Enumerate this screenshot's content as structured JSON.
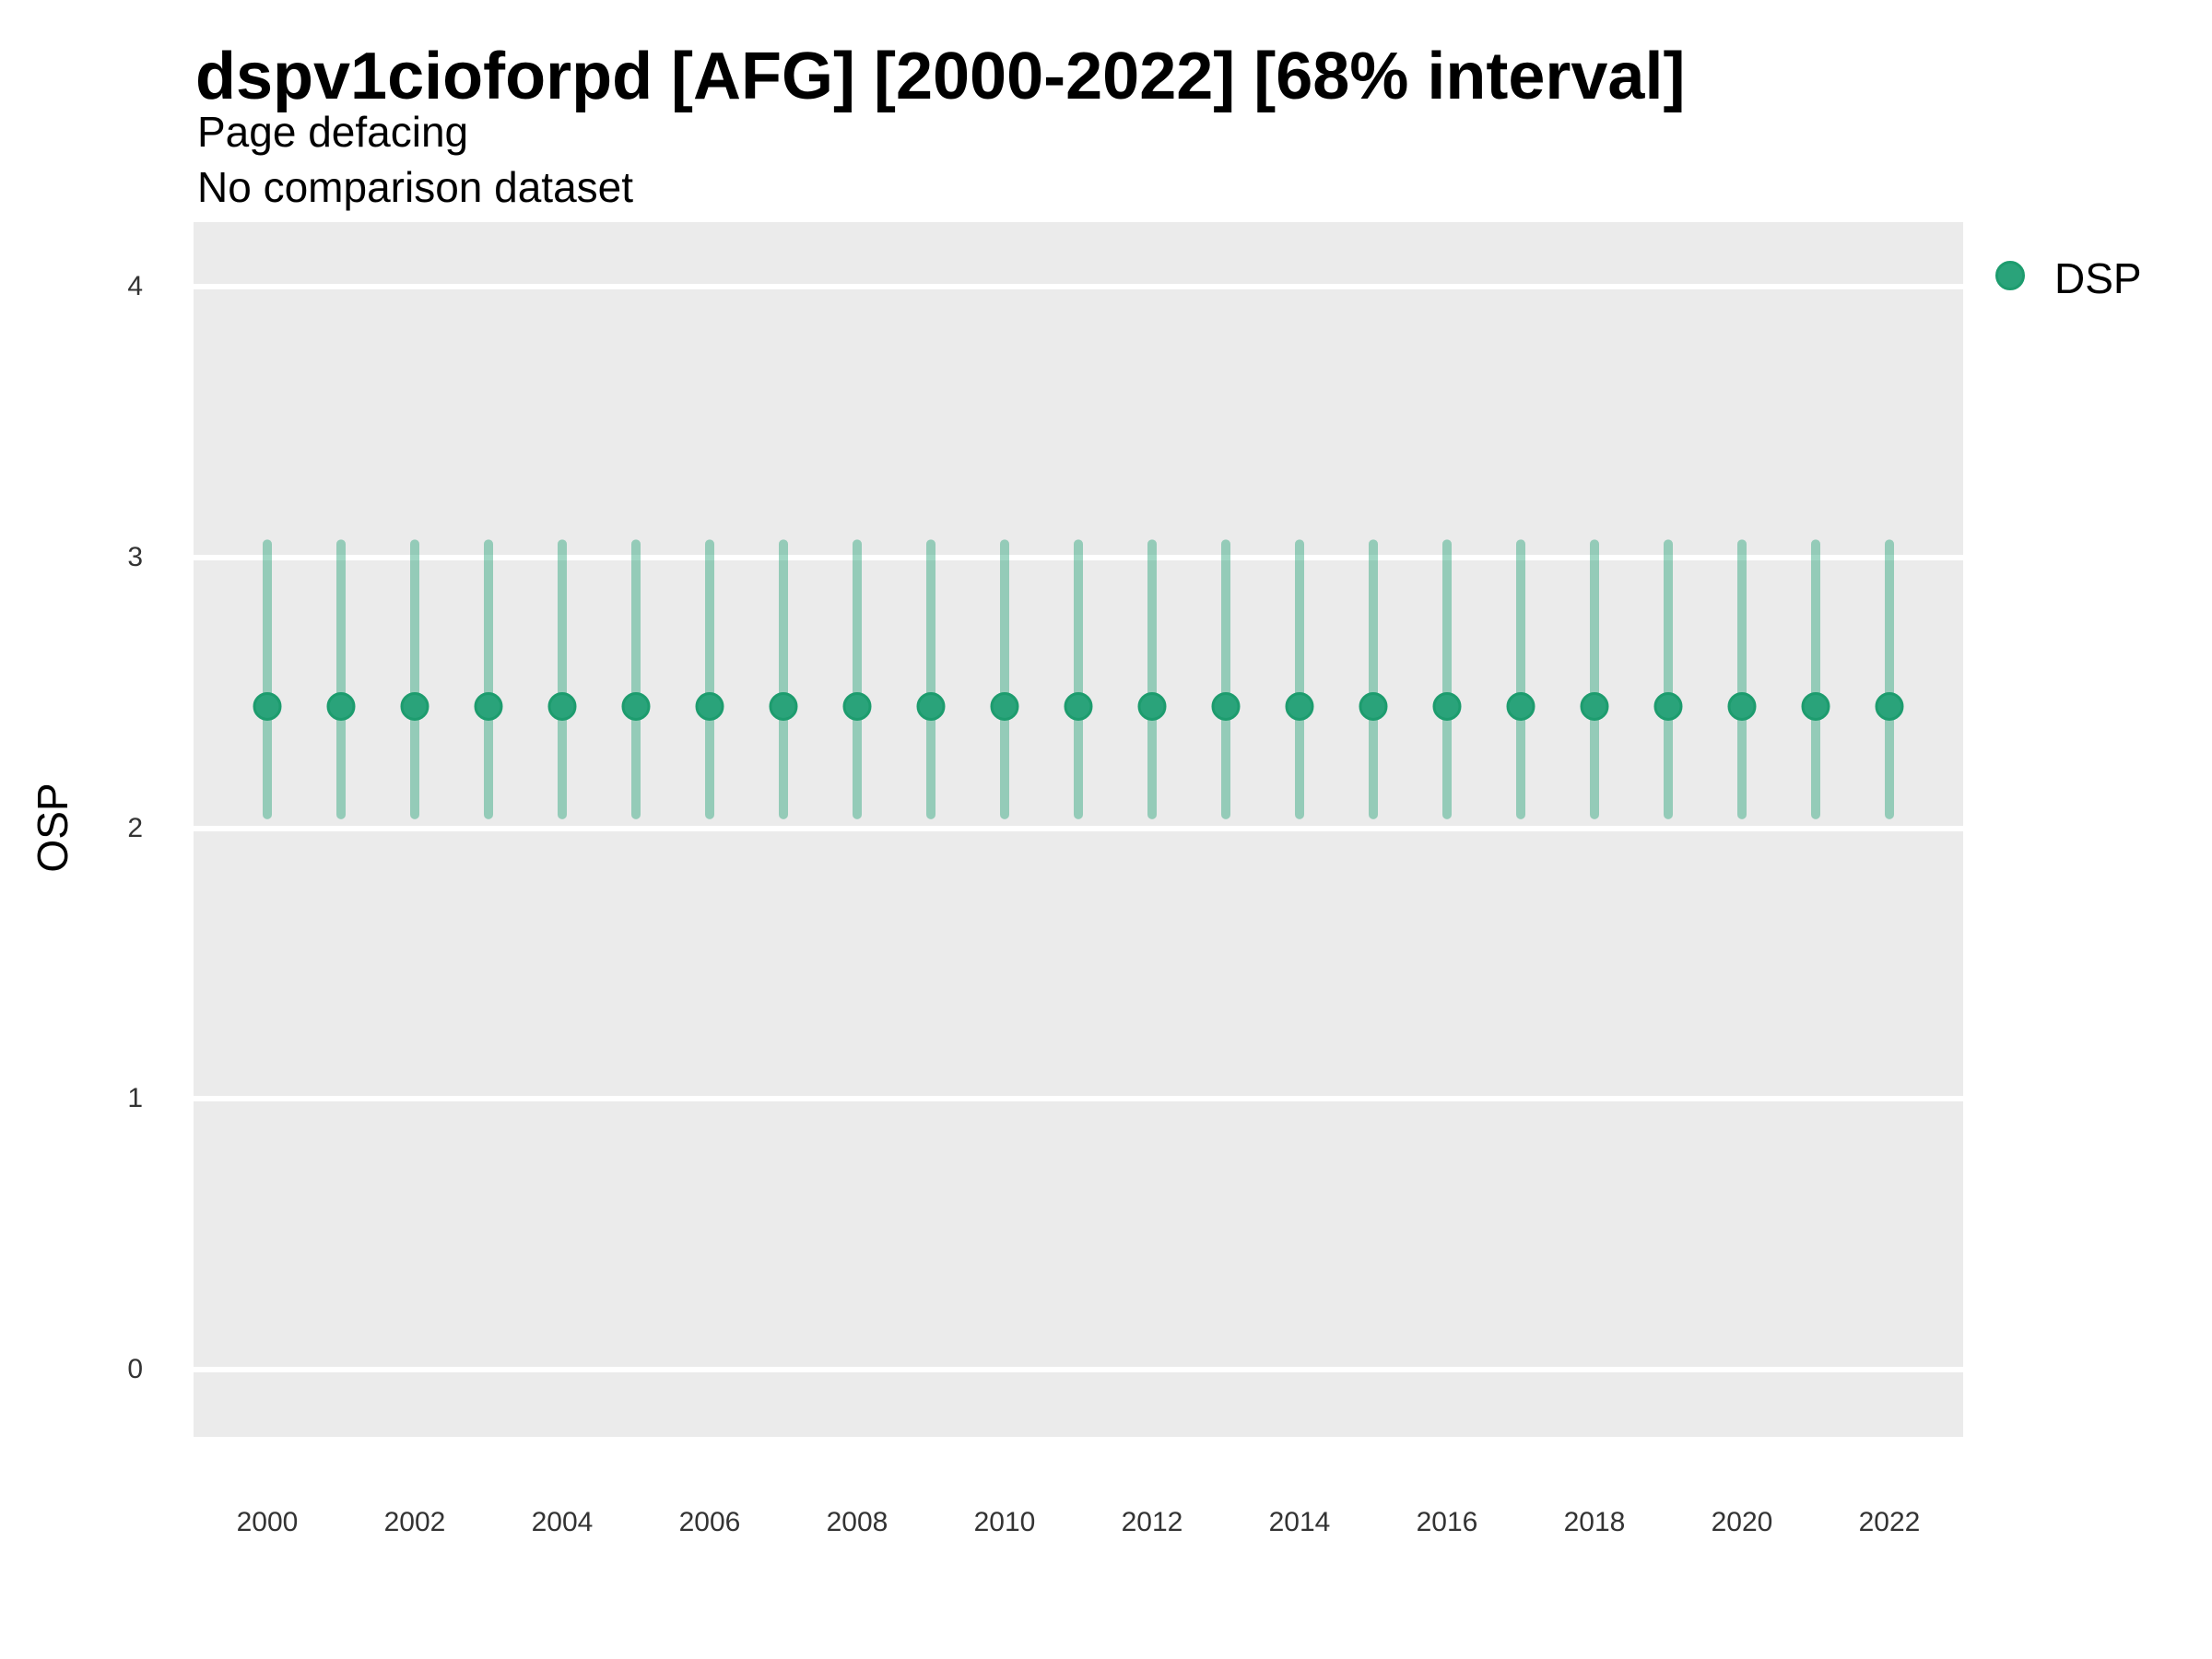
{
  "header": {
    "title": "dspv1cioforpd [AFG] [2000-2022] [68% interval]",
    "subtitle": "Page defacing",
    "comparison_note": "No comparison dataset"
  },
  "chart_data": {
    "type": "pointrange",
    "title": "dspv1cioforpd [AFG] [2000-2022] [68% interval]",
    "subtitle": "Page defacing",
    "note": "No comparison dataset",
    "xlabel": "",
    "ylabel": "OSP",
    "x": [
      2000,
      2001,
      2002,
      2003,
      2004,
      2005,
      2006,
      2007,
      2008,
      2009,
      2010,
      2011,
      2012,
      2013,
      2014,
      2015,
      2016,
      2017,
      2018,
      2019,
      2020,
      2021,
      2022
    ],
    "series": [
      {
        "name": "DSP",
        "point": [
          2.45,
          2.45,
          2.45,
          2.45,
          2.45,
          2.45,
          2.45,
          2.45,
          2.45,
          2.45,
          2.45,
          2.45,
          2.45,
          2.45,
          2.45,
          2.45,
          2.45,
          2.45,
          2.45,
          2.45,
          2.45,
          2.45,
          2.45
        ],
        "lower": [
          2.05,
          2.05,
          2.05,
          2.05,
          2.05,
          2.05,
          2.05,
          2.05,
          2.05,
          2.05,
          2.05,
          2.05,
          2.05,
          2.05,
          2.05,
          2.05,
          2.05,
          2.05,
          2.05,
          2.05,
          2.05,
          2.05,
          2.05
        ],
        "upper": [
          3.05,
          3.05,
          3.05,
          3.05,
          3.05,
          3.05,
          3.05,
          3.05,
          3.05,
          3.05,
          3.05,
          3.05,
          3.05,
          3.05,
          3.05,
          3.05,
          3.05,
          3.05,
          3.05,
          3.05,
          3.05,
          3.05,
          3.05
        ]
      }
    ],
    "x_ticks": [
      2000,
      2002,
      2004,
      2006,
      2008,
      2010,
      2012,
      2014,
      2016,
      2018,
      2020,
      2022
    ],
    "y_ticks": [
      0,
      1,
      2,
      3,
      4
    ],
    "xlim": [
      1999,
      2023
    ],
    "ylim": [
      -0.25,
      4.24
    ],
    "grid": "horizontal major gridlines only",
    "legend": {
      "position": "right",
      "entries": [
        "DSP"
      ]
    },
    "style": {
      "point_color": "#2AA37A",
      "point_stroke": "#1D9C6E",
      "errorbar_color": "rgba(42,163,122,0.45)",
      "panel_bg": "#EBEBEB",
      "gridline_color": "#FFFFFF"
    }
  }
}
